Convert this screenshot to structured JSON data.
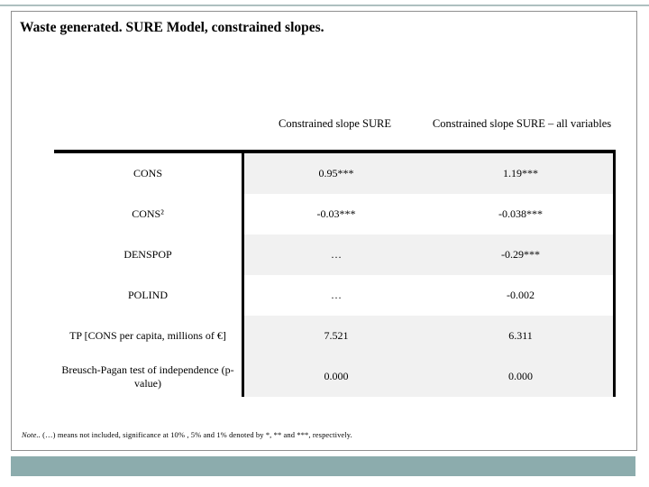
{
  "slide": {
    "title": "Waste generated. SURE Model, constrained slopes.",
    "footnote_lead": "Note..",
    "footnote_rest": " (…) means not included, significance at 10% , 5% and 1% denoted by *, ** and ***, respectively."
  },
  "table": {
    "column_headers": [
      "Constrained slope SURE",
      "Constrained slope SURE – all variables"
    ],
    "rows": [
      {
        "label": "CONS",
        "constrained": "0.95***",
        "all_variables": "1.19***"
      },
      {
        "label": "CONS²",
        "constrained": "-0.03***",
        "all_variables": "-0.038***"
      },
      {
        "label": "DENSPOP",
        "constrained": "…",
        "all_variables": "-0.29***"
      },
      {
        "label": "POLIND",
        "constrained": "…",
        "all_variables": "-0.002"
      },
      {
        "label": "TP [CONS per capita, millions of €]",
        "constrained": "7.521",
        "all_variables": "6.311"
      },
      {
        "label": "Breusch-Pagan test of independence (p-value)",
        "constrained": "0.000",
        "all_variables": "0.000"
      }
    ]
  },
  "colors": {
    "bottom_accent_bar": "#8cacad",
    "row_shading": "#f1f1f1",
    "frame_border": "#8f8f8f"
  }
}
